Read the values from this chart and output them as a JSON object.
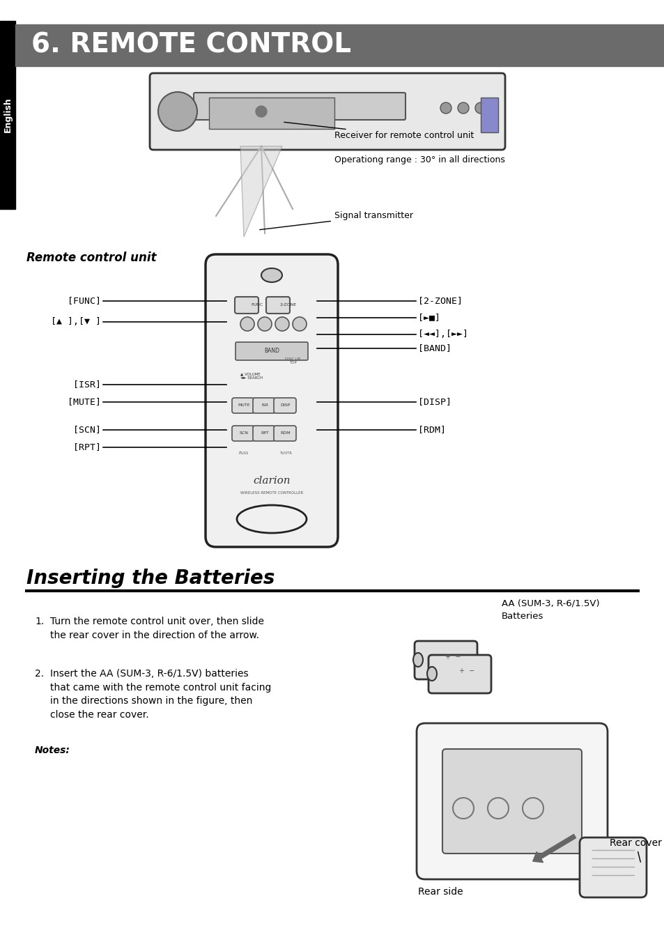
{
  "title": "6. REMOTE CONTROL",
  "title_bg": "#6b6b6b",
  "title_color": "#ffffff",
  "sidebar_bg": "#000000",
  "sidebar_text": "English",
  "sidebar_text_color": "#ffffff",
  "section2_title": "Inserting the Batteries",
  "remote_control_label": "Remote control unit",
  "receiver_label": "Receiver for remote control unit",
  "op_range_label": "Operationg range : 30° in all directions",
  "signal_label": "Signal transmitter",
  "labels_left": [
    "[FUNC]",
    "[▲ ],[▼ ]",
    "[ISR]",
    "[MUTE]",
    "[SCN]",
    "[RPT]"
  ],
  "labels_right": [
    "[2-ZONE]",
    "[►■]",
    "[◄◄],[►►]",
    "[BAND]",
    "[DISP]",
    "[RDM]"
  ],
  "step1": "Turn the remote control unit over, then slide\nthe rear cover in the direction of the arrow.",
  "step2": "Insert the AA (SUM-3, R-6/1.5V) batteries\nthat came with the remote control unit facing\nin the directions shown in the figure, then\nclose the rear cover.",
  "notes_label": "Notes:",
  "battery_label": "AA (SUM-3, R-6/1.5V)\nBatteries",
  "rear_cover_label": "Rear cover",
  "rear_side_label": "Rear side",
  "bg_color": "#ffffff",
  "line_color": "#000000",
  "gray_color": "#888888"
}
